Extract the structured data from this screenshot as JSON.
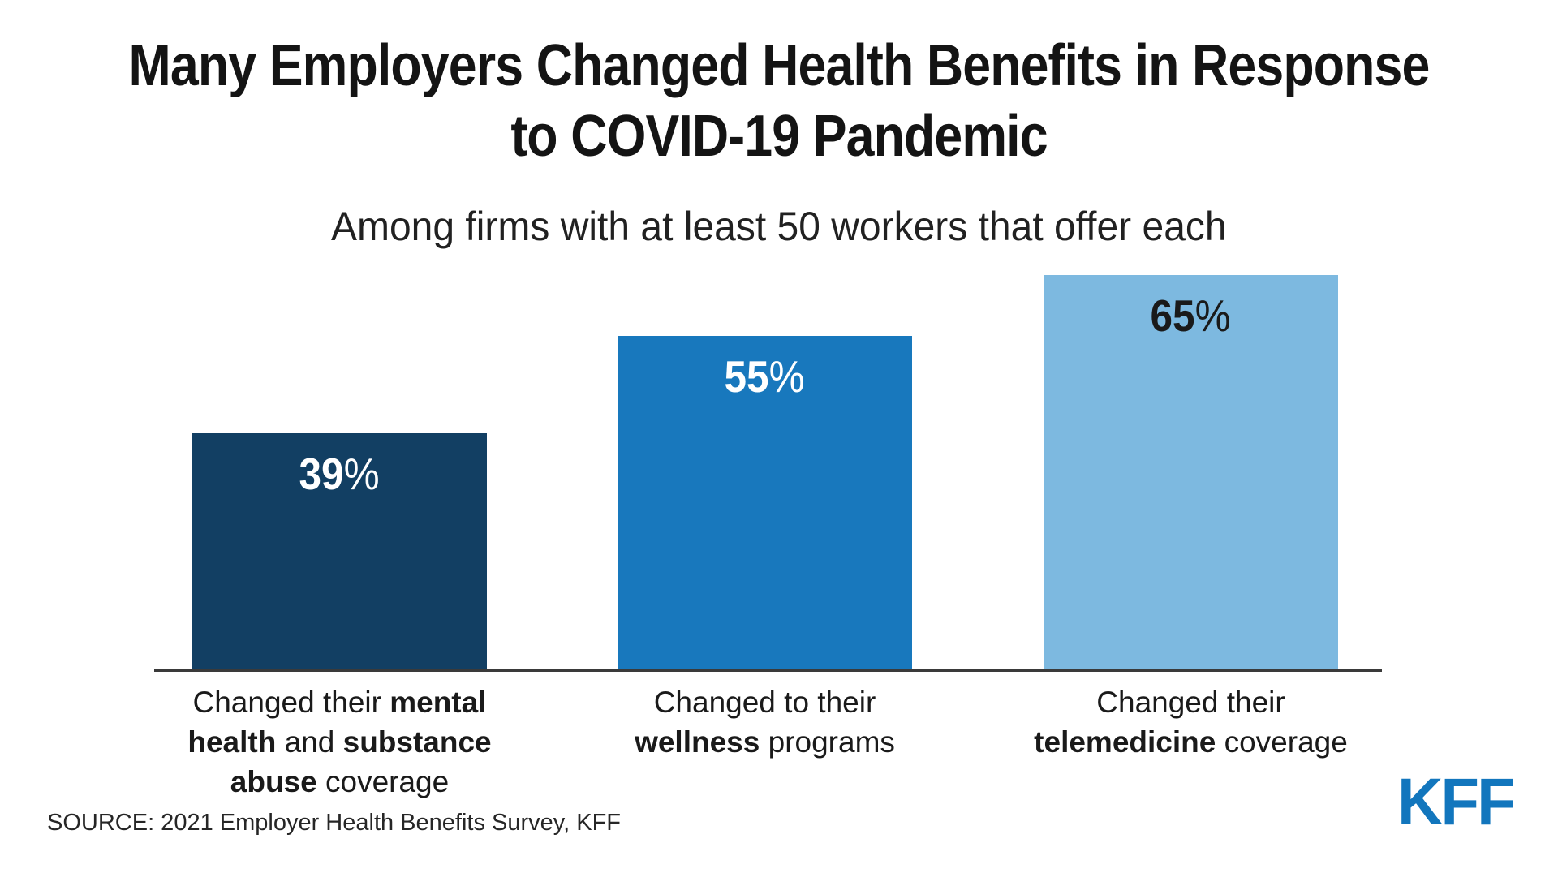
{
  "title_lines": [
    "Many Employers Changed Health Benefits in Response",
    "to COVID-19 Pandemic"
  ],
  "subtitle": "Among firms with at least 50 workers that offer each",
  "source_note": "SOURCE: 2021 Employer Health Benefits Survey, KFF",
  "logo_text": "KFF",
  "colors": {
    "background": "#ffffff",
    "title_text": "#141414",
    "body_text": "#1a1a1a",
    "axis_line": "#3a3a3a",
    "kff_logo_blue": "#1276bd",
    "bar_dark_navy": "#123f63",
    "bar_medium_blue": "#1878bd",
    "bar_light_blue": "#7db9e0"
  },
  "chart_data": {
    "type": "bar",
    "title": "Many Employers Changed Health Benefits in Response to COVID-19 Pandemic",
    "subtitle": "Among firms with at least 50 workers that offer each",
    "categories": [
      "Changed their mental health and substance abuse coverage",
      "Changed to their wellness programs",
      "Changed their telemedicine coverage"
    ],
    "values": [
      39,
      55,
      65
    ],
    "value_labels": [
      "39%",
      "55%",
      "65%"
    ],
    "bar_colors": [
      "#123f63",
      "#1878bd",
      "#7db9e0"
    ],
    "value_label_colors": [
      "#ffffff",
      "#ffffff",
      "#1a1a1a"
    ],
    "xlabel": "",
    "ylabel": "",
    "ylim": [
      0,
      72
    ],
    "grid": false,
    "legend": false,
    "source": "SOURCE: 2021 Employer Health Benefits Survey, KFF"
  },
  "bars": [
    {
      "id": "mental-health-substance-abuse",
      "value": 39,
      "number": "39",
      "percent_sign": "%",
      "color": "#123f63",
      "value_color": "#ffffff",
      "label_lines": [
        [
          {
            "t": "Changed their ",
            "b": false
          },
          {
            "t": "mental",
            "b": true
          }
        ],
        [
          {
            "t": "health",
            "b": true
          },
          {
            "t": " and ",
            "b": false
          },
          {
            "t": "substance",
            "b": true
          }
        ],
        [
          {
            "t": "abuse",
            "b": true
          },
          {
            "t": " coverage",
            "b": false
          }
        ]
      ]
    },
    {
      "id": "wellness-programs",
      "value": 55,
      "number": "55",
      "percent_sign": "%",
      "color": "#1878bd",
      "value_color": "#ffffff",
      "label_lines": [
        [
          {
            "t": "Changed to their",
            "b": false
          }
        ],
        [
          {
            "t": "wellness",
            "b": true
          },
          {
            "t": " programs",
            "b": false
          }
        ]
      ]
    },
    {
      "id": "telemedicine-coverage",
      "value": 65,
      "number": "65",
      "percent_sign": "%",
      "color": "#7db9e0",
      "value_color": "#1a1a1a",
      "label_lines": [
        [
          {
            "t": "Changed their",
            "b": false
          }
        ],
        [
          {
            "t": "telemedicine",
            "b": true
          },
          {
            "t": " coverage",
            "b": false
          }
        ]
      ]
    }
  ]
}
